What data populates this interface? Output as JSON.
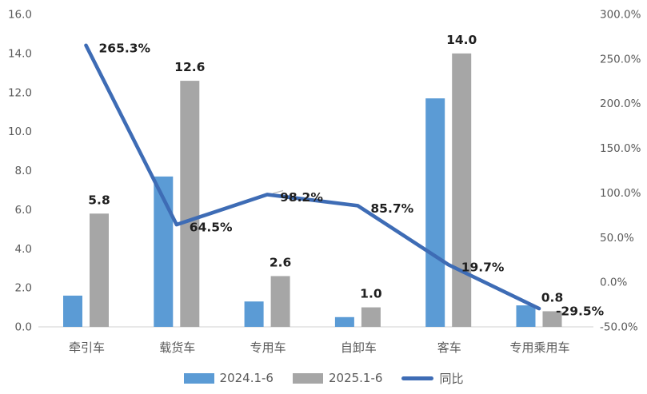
{
  "chart_data": {
    "type": "bar",
    "subtype": "combo-bar-line-dual-axis",
    "title": "",
    "categories": [
      "牵引车",
      "载货车",
      "专用车",
      "自卸车",
      "客车",
      "专用乘用车"
    ],
    "bar_series": [
      {
        "name": "2024.1-6",
        "color": "#5B9BD5",
        "values": [
          1.6,
          7.7,
          1.3,
          0.5,
          11.7,
          1.1
        ]
      },
      {
        "name": "2025.1-6",
        "color": "#A6A6A6",
        "values": [
          5.8,
          12.6,
          2.6,
          1.0,
          14.0,
          0.8
        ],
        "data_labels": [
          "5.8",
          "12.6",
          "2.6",
          "1.0",
          "14.0",
          "0.8"
        ]
      }
    ],
    "line_series": {
      "name": "同比",
      "color": "#3E6CB5",
      "values_pct": [
        265.3,
        64.5,
        98.2,
        85.7,
        19.7,
        -29.5
      ],
      "data_labels": [
        "265.3%",
        "64.5%",
        "98.2%",
        "85.7%",
        "19.7%",
        "-29.5%"
      ]
    },
    "left_axis": {
      "min": 0,
      "max": 16,
      "step": 2,
      "tick_labels": [
        "16.0",
        "14.0",
        "12.0",
        "10.0",
        "8.0",
        "6.0",
        "4.0",
        "2.0",
        "0.0"
      ]
    },
    "right_axis": {
      "min": -50,
      "max": 300,
      "step": 50,
      "tick_labels": [
        "300.0%",
        "250.0%",
        "200.0%",
        "150.0%",
        "100.0%",
        "50.0%",
        "0.0%",
        "-50.0%"
      ]
    },
    "legend": {
      "position": "bottom",
      "entries": [
        "2024.1-6",
        "2025.1-6",
        "同比"
      ]
    },
    "grid": false
  },
  "colors": {
    "axis_text": "#595959",
    "category_text": "#595959",
    "data_label_text": "#1F1F1F",
    "baseline": "#D9D9D9",
    "leader_line": "#BFBFBF",
    "background": "#FFFFFF"
  }
}
